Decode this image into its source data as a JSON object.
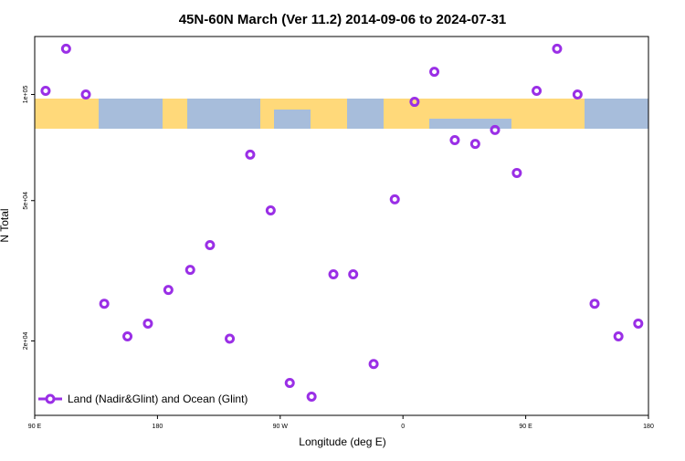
{
  "chart_data": {
    "type": "scatter",
    "title": "45N-60N March (Ver 11.2)   2014-09-06 to 2024-07-31",
    "x_label": "Longitude (deg E)",
    "y_label": "N Total",
    "log_y": true,
    "legend_position": "bottom-left",
    "xlim": [
      90,
      540
    ],
    "ylim": [
      12300,
      146000
    ],
    "xticks": [
      {
        "value": 90,
        "label": "90 E"
      },
      {
        "value": 180,
        "label": "180"
      },
      {
        "value": 270,
        "label": "90 W"
      },
      {
        "value": 360,
        "label": "0"
      },
      {
        "value": 450,
        "label": "90 E"
      },
      {
        "value": 540,
        "label": "180"
      }
    ],
    "yticks": [
      {
        "value": 20000,
        "label": "2e+04"
      },
      {
        "value": 50000,
        "label": "5e+04"
      },
      {
        "value": 100000,
        "label": "1e+05"
      }
    ],
    "series": [
      {
        "name": "Land (Nadir&Glint) and Ocean (Glint)",
        "color": "#9a2fe6",
        "x": [
          98,
          113,
          127.5,
          141,
          158,
          173,
          188,
          204,
          218.5,
          233,
          248,
          263,
          277,
          293,
          309,
          323.5,
          338.5,
          354,
          368.5,
          383,
          398,
          413,
          427.5,
          443.5,
          458,
          473,
          488,
          500.5,
          518,
          532.5
        ],
        "values": [
          102400,
          134800,
          100000,
          25500,
          20600,
          22400,
          27900,
          31800,
          37400,
          20300,
          67500,
          46900,
          15200,
          13900,
          30900,
          30900,
          17200,
          50400,
          95300,
          116000,
          74200,
          72400,
          79300,
          59900,
          102400,
          134800,
          100000,
          25500,
          20600,
          22400
        ]
      }
    ]
  }
}
